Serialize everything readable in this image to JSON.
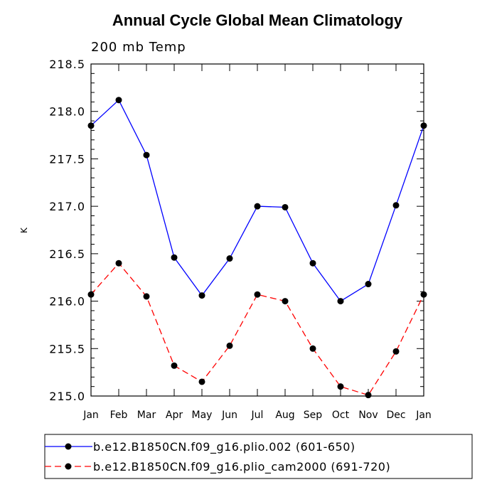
{
  "chart_data": {
    "type": "line",
    "title": "Annual Cycle Global Mean Climatology",
    "subtitle": "200 mb Temp",
    "xlabel": "",
    "ylabel": "K",
    "categories": [
      "Jan",
      "Feb",
      "Mar",
      "Apr",
      "May",
      "Jun",
      "Jul",
      "Aug",
      "Sep",
      "Oct",
      "Nov",
      "Dec",
      "Jan"
    ],
    "ylim": [
      215.0,
      218.5
    ],
    "yticks": [
      215.0,
      215.5,
      216.0,
      216.5,
      217.0,
      217.5,
      218.0,
      218.5
    ],
    "ytick_labels": [
      "215.0",
      "215.5",
      "216.0",
      "216.5",
      "217.0",
      "217.5",
      "218.0",
      "218.5"
    ],
    "series": [
      {
        "name": "b.e12.B1850CN.f09_g16.plio.002 (601-650)",
        "color": "#0000ff",
        "style": "solid",
        "values": [
          217.85,
          218.12,
          217.54,
          216.46,
          216.06,
          216.45,
          217.0,
          216.99,
          216.4,
          216.0,
          216.18,
          217.01,
          217.85
        ]
      },
      {
        "name": "b.e12.B1850CN.f09_g16.plio_cam2000 (691-720)",
        "color": "#ff0000",
        "style": "dashed",
        "values": [
          216.07,
          216.4,
          216.05,
          215.32,
          215.15,
          215.53,
          216.07,
          216.0,
          215.5,
          215.1,
          215.01,
          215.47,
          216.07
        ]
      }
    ],
    "legend_position": "bottom"
  }
}
